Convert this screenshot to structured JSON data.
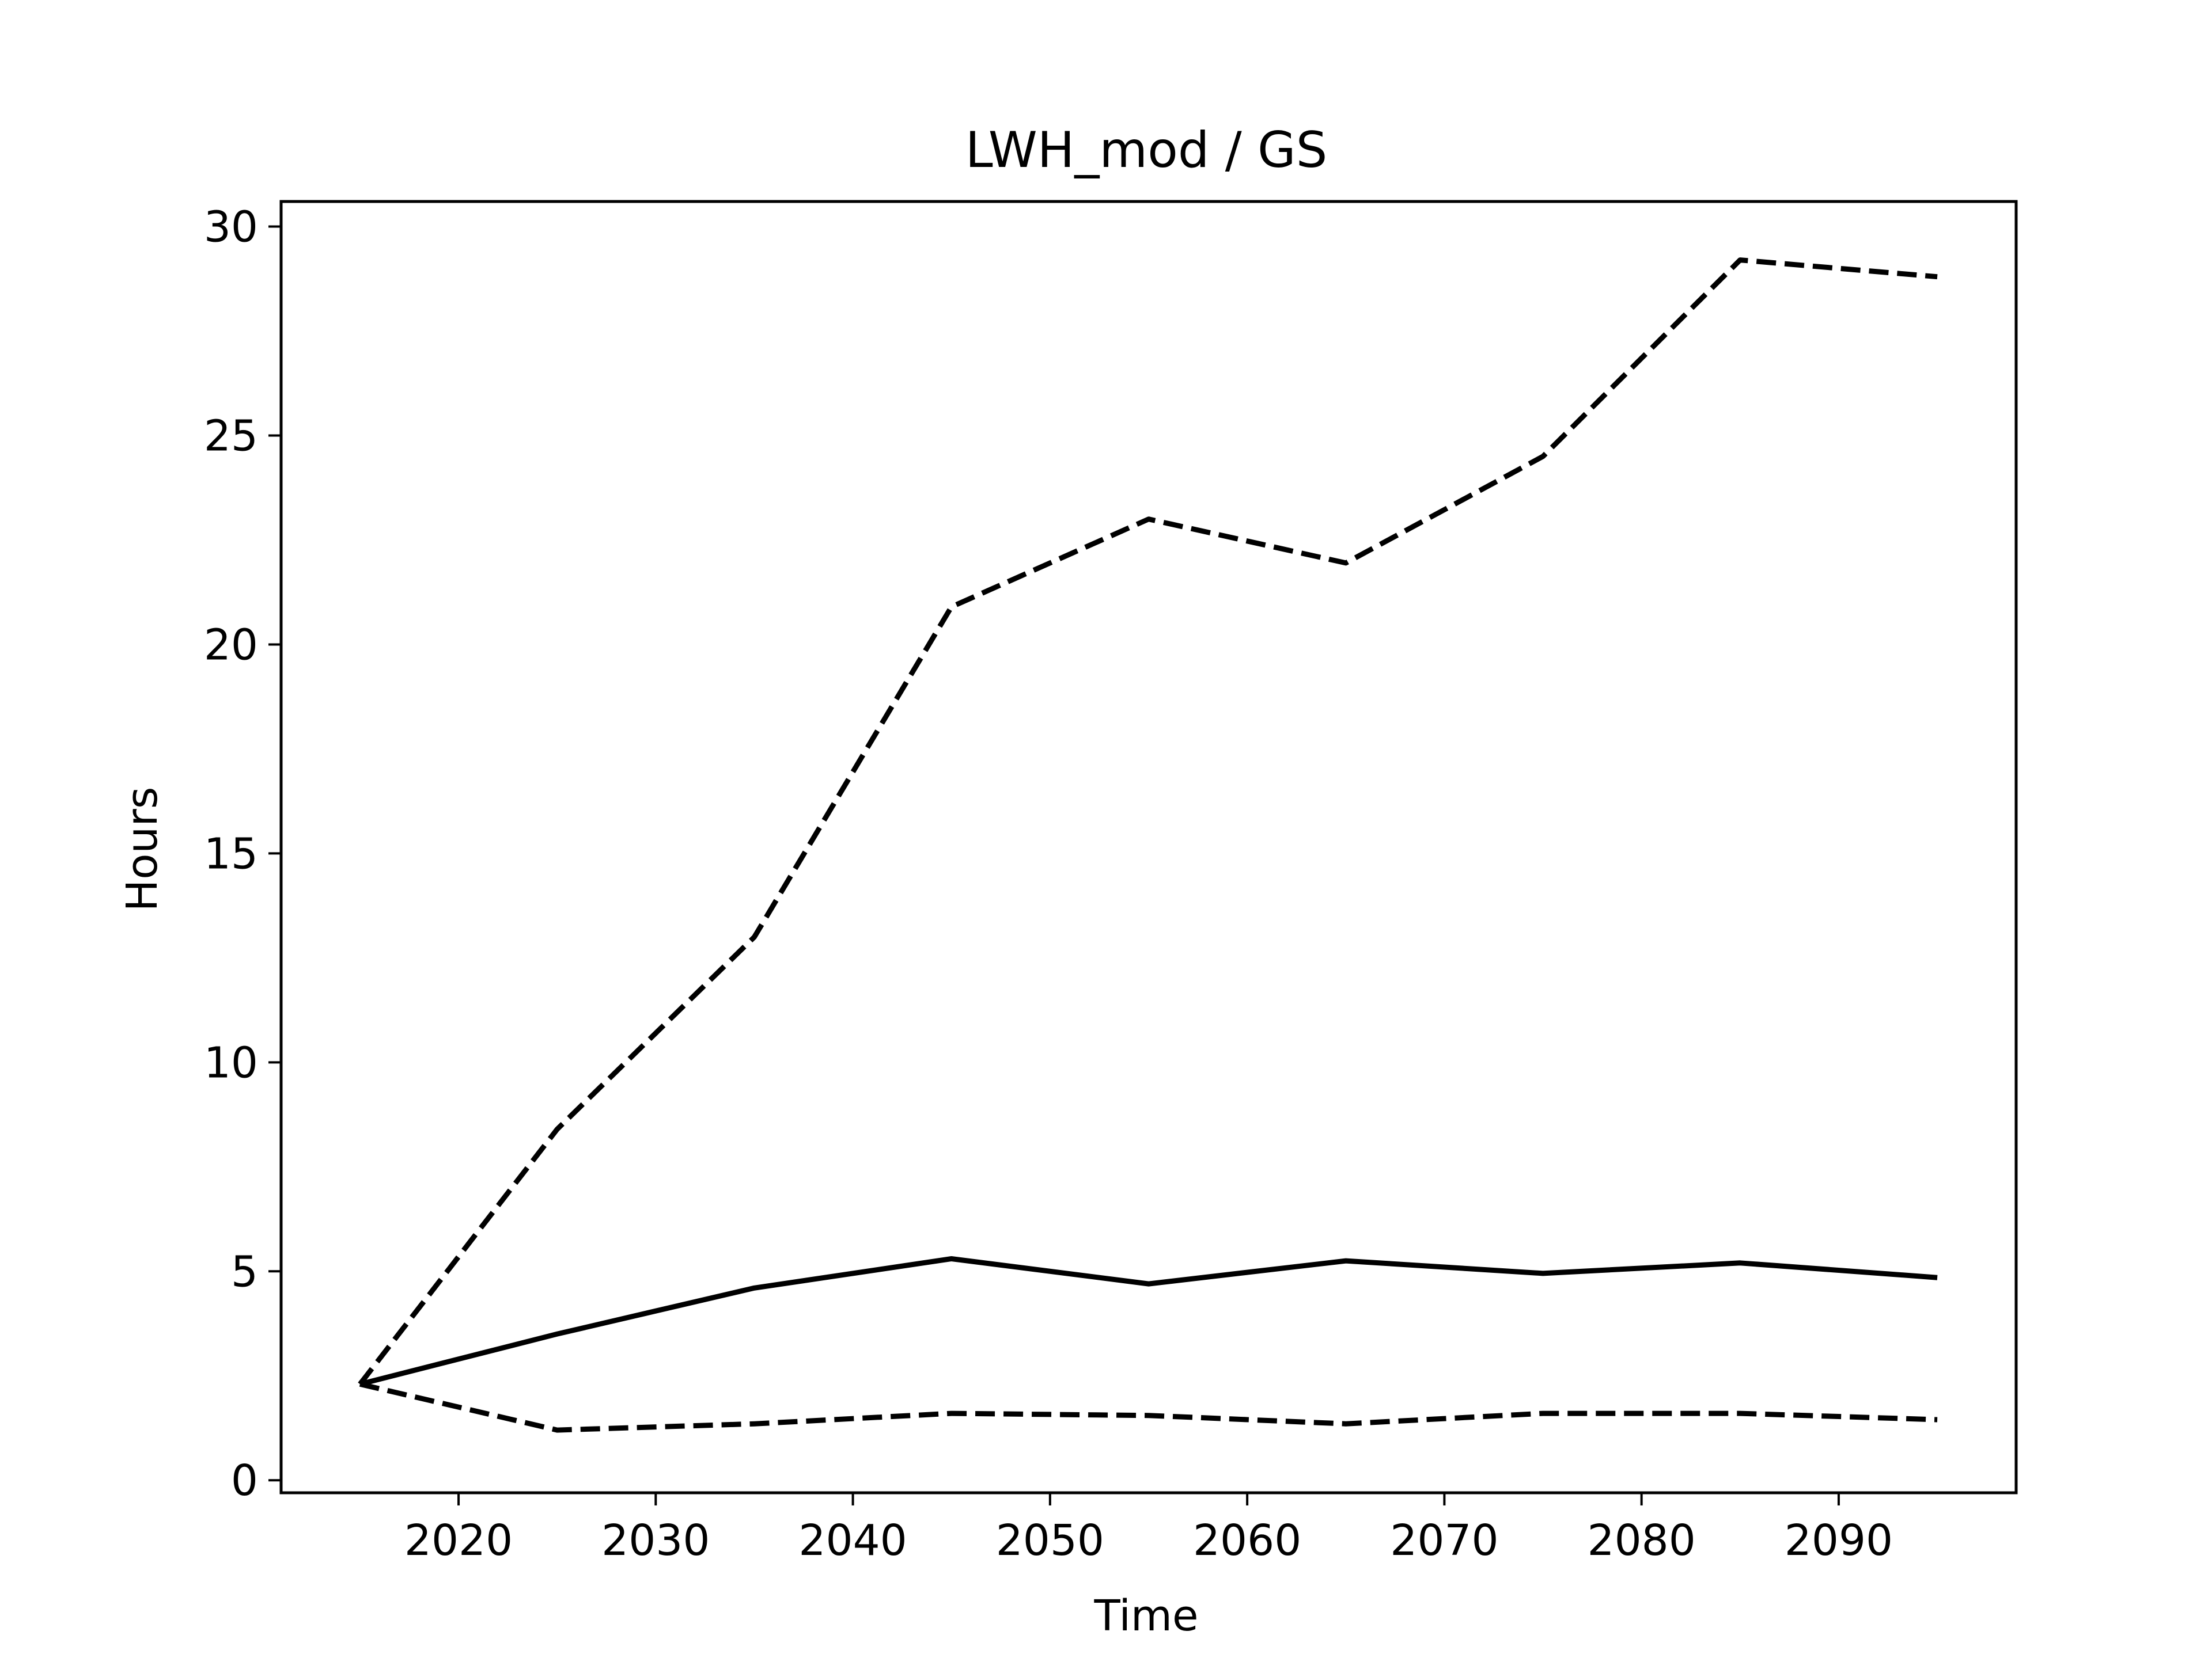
{
  "chart_data": {
    "type": "line",
    "title": "LWH_mod / GS",
    "xlabel": "Time",
    "ylabel": "Hours",
    "xlim": [
      2011,
      2099
    ],
    "ylim": [
      -0.3,
      30.6
    ],
    "xticks": [
      2020,
      2030,
      2040,
      2050,
      2060,
      2070,
      2080,
      2090
    ],
    "yticks": [
      0,
      5,
      10,
      15,
      20,
      25,
      30
    ],
    "grid": false,
    "x": [
      2015,
      2025,
      2035,
      2045,
      2055,
      2065,
      2075,
      2085,
      2095
    ],
    "series": [
      {
        "style": "solid",
        "color": "#000000",
        "values": [
          2.3,
          3.5,
          4.6,
          5.3,
          4.7,
          5.25,
          4.95,
          5.2,
          4.85
        ]
      },
      {
        "style": "dashed",
        "color": "#000000",
        "values": [
          2.3,
          8.4,
          13.0,
          20.9,
          23.0,
          21.95,
          24.5,
          29.2,
          28.8
        ]
      },
      {
        "style": "dashed",
        "color": "#000000",
        "values": [
          2.3,
          1.2,
          1.35,
          1.6,
          1.55,
          1.35,
          1.6,
          1.6,
          1.45
        ]
      }
    ]
  }
}
